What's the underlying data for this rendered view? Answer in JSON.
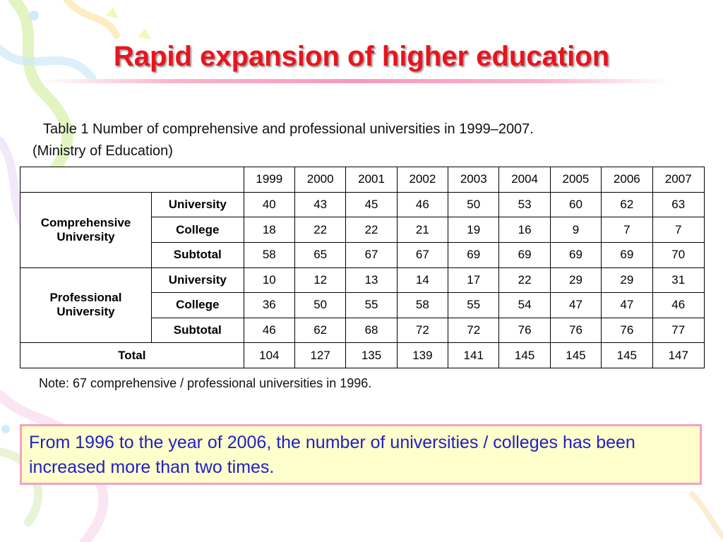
{
  "title": "Rapid expansion of higher education",
  "caption": {
    "line1": "Table 1  Number of comprehensive and professional universities in 1999–2007.",
    "line2": "(Ministry of Education)"
  },
  "table": {
    "years": [
      "1999",
      "2000",
      "2001",
      "2002",
      "2003",
      "2004",
      "2005",
      "2006",
      "2007"
    ],
    "groups": [
      {
        "name": "Comprehensive University",
        "rows": [
          {
            "label": "University",
            "values": [
              "40",
              "43",
              "45",
              "46",
              "50",
              "53",
              "60",
              "62",
              "63"
            ]
          },
          {
            "label": "College",
            "values": [
              "18",
              "22",
              "22",
              "21",
              "19",
              "16",
              "9",
              "7",
              "7"
            ]
          },
          {
            "label": "Subtotal",
            "values": [
              "58",
              "65",
              "67",
              "67",
              "69",
              "69",
              "69",
              "69",
              "70"
            ]
          }
        ]
      },
      {
        "name": "Professional University",
        "rows": [
          {
            "label": "University",
            "values": [
              "10",
              "12",
              "13",
              "14",
              "17",
              "22",
              "29",
              "29",
              "31"
            ]
          },
          {
            "label": "College",
            "values": [
              "36",
              "50",
              "55",
              "58",
              "55",
              "54",
              "47",
              "47",
              "46"
            ]
          },
          {
            "label": "Subtotal",
            "values": [
              "46",
              "62",
              "68",
              "72",
              "72",
              "76",
              "76",
              "76",
              "77"
            ]
          }
        ]
      }
    ],
    "total": {
      "label": "Total",
      "values": [
        "104",
        "127",
        "135",
        "139",
        "141",
        "145",
        "145",
        "145",
        "147"
      ]
    }
  },
  "note": "Note: 67 comprehensive / professional universities in 1996.",
  "callout": "From 1996 to the year of 2006, the number of universities / colleges has been increased more than two times.",
  "colors": {
    "title": "#e8141e",
    "callout_text": "#2020c8",
    "callout_bg": "#ffffcc",
    "callout_border": "#f4a0c2",
    "underline": "#f39ac0"
  }
}
